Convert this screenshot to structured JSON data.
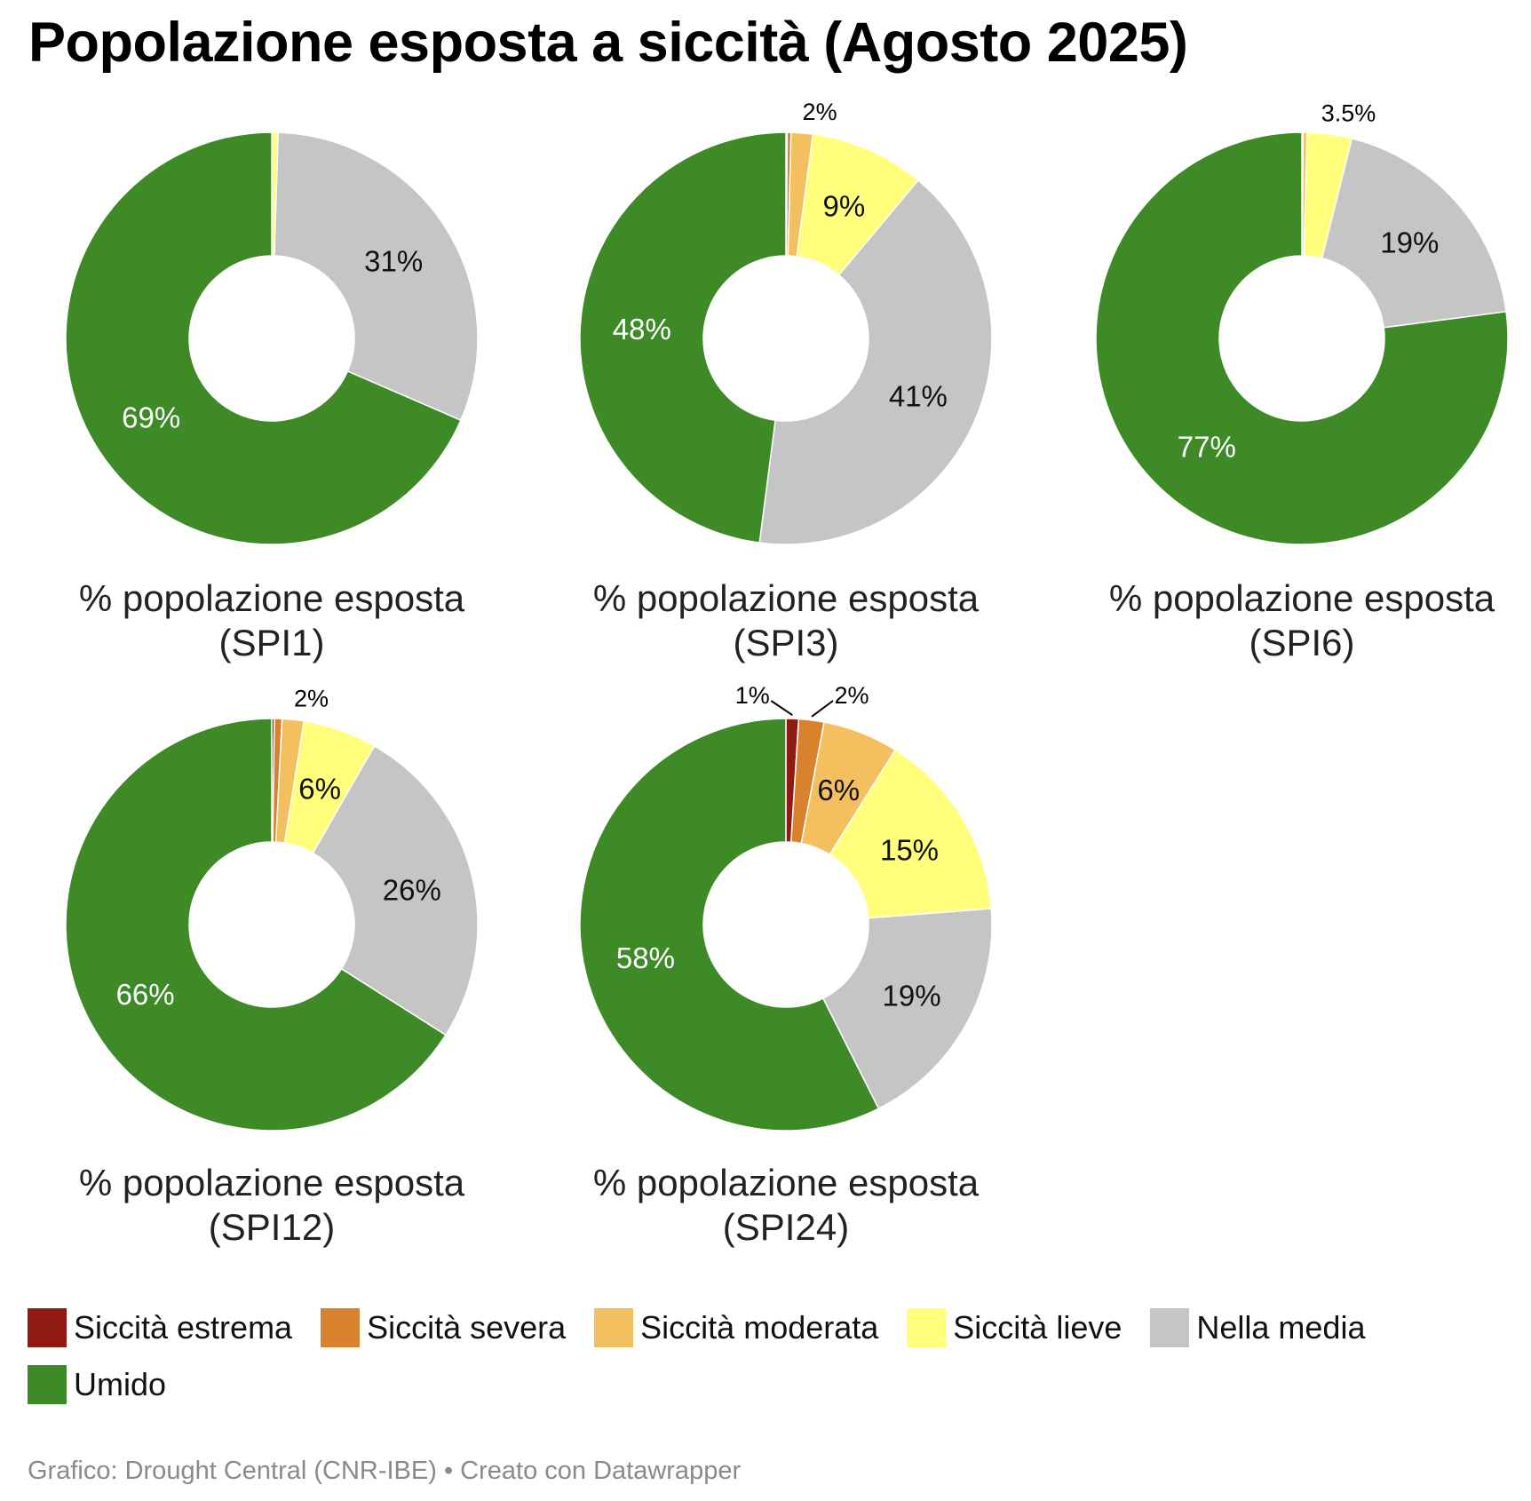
{
  "title": "Popolazione esposta a siccità (Agosto 2025)",
  "footer": "Grafico: Drought Central (CNR-IBE) • Creato con Datawrapper",
  "chart_data": {
    "type": "pie",
    "variant": "donut",
    "title": "Popolazione esposta a siccità (Agosto 2025)",
    "legend_placement": "bottom",
    "categories": [
      "Siccità estrema",
      "Siccità severa",
      "Siccità moderata",
      "Siccità lieve",
      "Nella media",
      "Umido"
    ],
    "colors": [
      "#8e1a13",
      "#d8822e",
      "#f4c05f",
      "#ffff7b",
      "#c5c5c5",
      "#3d8a27"
    ],
    "charts": [
      {
        "subtitle_line1": "% popolazione esposta",
        "subtitle_line2": "(SPI1)",
        "values": [
          0,
          0,
          0,
          0.5,
          31,
          68.5
        ],
        "labels": [
          null,
          null,
          null,
          null,
          "31%",
          "69%"
        ]
      },
      {
        "subtitle_line1": "% popolazione esposta",
        "subtitle_line2": "(SPI3)",
        "values": [
          0.1,
          0.3,
          1.7,
          9,
          41,
          48
        ],
        "labels": [
          null,
          null,
          "2%",
          "9%",
          "41%",
          "48%"
        ]
      },
      {
        "subtitle_line1": "% popolazione esposta",
        "subtitle_line2": "(SPI6)",
        "values": [
          0,
          0.1,
          0.3,
          3.5,
          19,
          77
        ],
        "labels": [
          null,
          null,
          null,
          "3.5%",
          "19%",
          "77%"
        ]
      },
      {
        "subtitle_line1": "% popolazione esposta",
        "subtitle_line2": "(SPI12)",
        "values": [
          0.2,
          0.6,
          1.7,
          5.8,
          25.7,
          66
        ],
        "labels": [
          null,
          null,
          "2%",
          "6%",
          "26%",
          "66%"
        ]
      },
      {
        "subtitle_line1": "% popolazione esposta",
        "subtitle_line2": "(SPI24)",
        "values": [
          1,
          2,
          6,
          15,
          19,
          58
        ],
        "labels": [
          "1%",
          "2%",
          "6%",
          "15%",
          "19%",
          "58%"
        ],
        "leader_labels": [
          0,
          1
        ]
      }
    ]
  }
}
